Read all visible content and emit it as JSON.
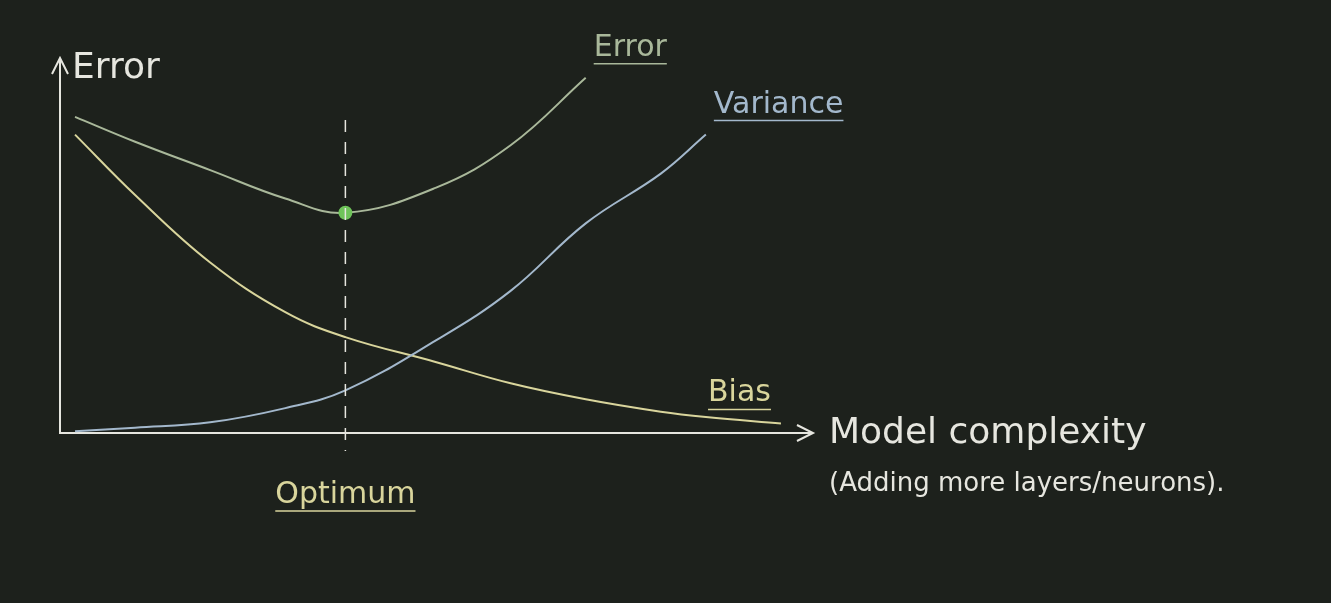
{
  "chart_data": {
    "type": "line",
    "y_label": "Error",
    "x_label": [
      "Model complexity",
      "(Adding more layers/neurons)."
    ],
    "x": [
      0.2,
      1,
      2,
      3,
      3.8,
      5,
      6,
      7,
      8,
      8.6,
      9.6
    ],
    "series": [
      {
        "name": "Error",
        "color": "#a9b89a",
        "values": [
          8.9,
          8.2,
          7.4,
          6.6,
          6.2,
          6.9,
          8.1,
          10.0,
          null,
          null,
          null
        ]
      },
      {
        "name": "Variance",
        "color": "#a3b8cc",
        "values": [
          0.05,
          0.15,
          0.3,
          0.7,
          1.2,
          2.6,
          4.0,
          5.9,
          7.3,
          8.4,
          null
        ]
      },
      {
        "name": "Bias",
        "color": "#d9d59c",
        "values": [
          8.4,
          6.7,
          4.8,
          3.4,
          2.7,
          2.0,
          1.4,
          0.95,
          0.6,
          0.45,
          0.27
        ]
      }
    ],
    "xlim": [
      0,
      10
    ],
    "ylim": [
      0,
      10.5
    ],
    "tick_labels": false,
    "grid": false,
    "annotations": [
      {
        "text": "Optimum",
        "x": 3.8,
        "line_style": "dashed"
      }
    ]
  }
}
